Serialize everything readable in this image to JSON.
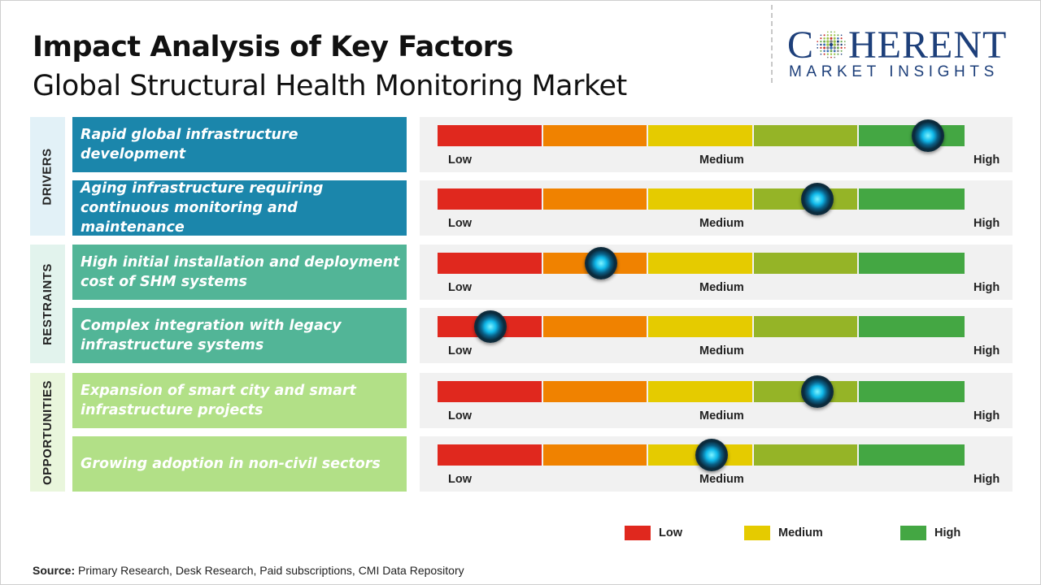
{
  "title": "Impact Analysis of Key Factors",
  "subtitle": "Global Structural Health Monitoring Market",
  "logo": {
    "top": "COHERENT",
    "bottom": "MARKET INSIGHTS"
  },
  "chart_data": {
    "type": "table",
    "scale_labels": {
      "low": "Low",
      "medium": "Medium",
      "high": "High"
    },
    "scale_colors": [
      "#e0281e",
      "#f08200",
      "#e5cb00",
      "#95b427",
      "#44a743"
    ],
    "categories": [
      {
        "name": "DRIVERS",
        "color": "#1b86ab",
        "band_color": "#e2f1f7",
        "start": 0,
        "count": 2
      },
      {
        "name": "RESTRAINTS",
        "color": "#52b597",
        "band_color": "#e2f3ed",
        "start": 2,
        "count": 2
      },
      {
        "name": "OPPORTUNITIES",
        "color": "#b2e087",
        "band_color": "#e9f6dc",
        "start": 4,
        "count": 2
      }
    ],
    "factors": [
      {
        "category": "DRIVERS",
        "text": "Rapid global infrastructure development",
        "impact": 0.93
      },
      {
        "category": "DRIVERS",
        "text": "Aging infrastructure requiring continuous monitoring and maintenance",
        "impact": 0.72
      },
      {
        "category": "RESTRAINTS",
        "text": "High initial installation and deployment cost of SHM systems",
        "impact": 0.31
      },
      {
        "category": "RESTRAINTS",
        "text": "Complex integration with legacy infrastructure systems",
        "impact": 0.1
      },
      {
        "category": "OPPORTUNITIES",
        "text": "Expansion of smart city and smart infrastructure projects",
        "impact": 0.72
      },
      {
        "category": "OPPORTUNITIES",
        "text": "Growing adoption in non-civil sectors",
        "impact": 0.52
      }
    ],
    "legend": [
      {
        "label": "Low",
        "color": "#e0281e"
      },
      {
        "label": "Medium",
        "color": "#e5cb00"
      },
      {
        "label": "High",
        "color": "#44a743"
      }
    ]
  },
  "source": {
    "label": "Source:",
    "text": "Primary Research, Desk Research, Paid subscriptions, CMI Data Repository"
  }
}
